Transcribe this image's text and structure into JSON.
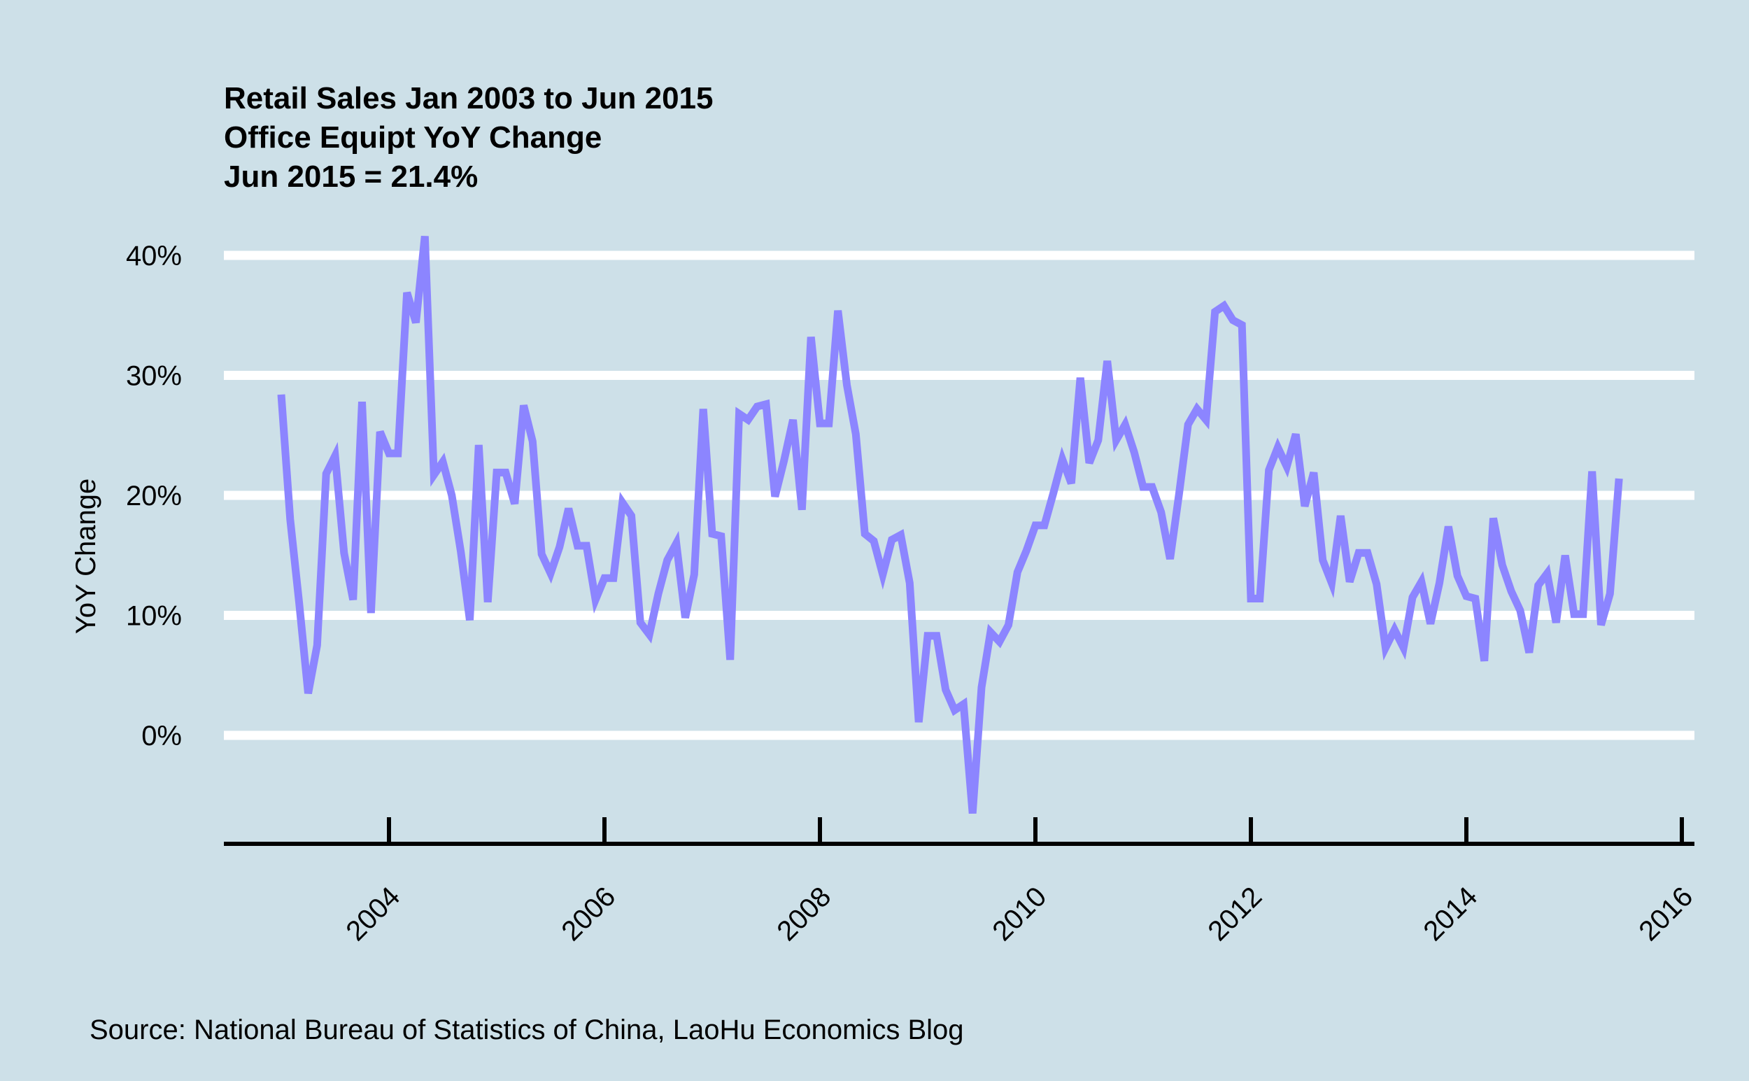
{
  "chart_data": {
    "type": "line",
    "title_lines": [
      "Retail Sales Jan 2003 to Jun 2015",
      "Office Equipt YoY Change",
      "Jun 2015 = 21.4%"
    ],
    "xlabel": "",
    "ylabel": "YoY Change",
    "yticks": [
      0,
      10,
      20,
      30,
      40
    ],
    "ytick_labels": [
      "0%",
      "10%",
      "20%",
      "30%",
      "40%"
    ],
    "xticks": [
      2004,
      2006,
      2008,
      2010,
      2012,
      2014,
      2016
    ],
    "xtick_labels": [
      "2004",
      "2006",
      "2008",
      "2010",
      "2012",
      "2014",
      "2016"
    ],
    "xlim": [
      2002.5,
      2016.1
    ],
    "ylim": [
      -9,
      44
    ],
    "grid": "horizontal",
    "colors": {
      "background": "#cde0e8",
      "line": "#8c85ff",
      "grid": "#ffffff",
      "axis": "#000000"
    },
    "series": [
      {
        "name": "",
        "x": [
          "2003-01",
          "2003-02",
          "2003-03",
          "2003-04",
          "2003-05",
          "2003-06",
          "2003-07",
          "2003-08",
          "2003-09",
          "2003-10",
          "2003-11",
          "2003-12",
          "2004-01",
          "2004-02",
          "2004-03",
          "2004-04",
          "2004-05",
          "2004-06",
          "2004-07",
          "2004-08",
          "2004-09",
          "2004-10",
          "2004-11",
          "2004-12",
          "2005-01",
          "2005-02",
          "2005-03",
          "2005-04",
          "2005-05",
          "2005-06",
          "2005-07",
          "2005-08",
          "2005-09",
          "2005-10",
          "2005-11",
          "2005-12",
          "2006-01",
          "2006-02",
          "2006-03",
          "2006-04",
          "2006-05",
          "2006-06",
          "2006-07",
          "2006-08",
          "2006-09",
          "2006-10",
          "2006-11",
          "2006-12",
          "2007-01",
          "2007-02",
          "2007-03",
          "2007-04",
          "2007-05",
          "2007-06",
          "2007-07",
          "2007-08",
          "2007-09",
          "2007-10",
          "2007-11",
          "2007-12",
          "2008-01",
          "2008-02",
          "2008-03",
          "2008-04",
          "2008-05",
          "2008-06",
          "2008-07",
          "2008-08",
          "2008-09",
          "2008-10",
          "2008-11",
          "2008-12",
          "2009-01",
          "2009-02",
          "2009-03",
          "2009-04",
          "2009-05",
          "2009-06",
          "2009-07",
          "2009-08",
          "2009-09",
          "2009-10",
          "2009-11",
          "2009-12",
          "2010-01",
          "2010-02",
          "2010-03",
          "2010-04",
          "2010-05",
          "2010-06",
          "2010-07",
          "2010-08",
          "2010-09",
          "2010-10",
          "2010-11",
          "2010-12",
          "2011-01",
          "2011-02",
          "2011-03",
          "2011-04",
          "2011-05",
          "2011-06",
          "2011-07",
          "2011-08",
          "2011-09",
          "2011-10",
          "2011-11",
          "2011-12",
          "2012-01",
          "2012-02",
          "2012-03",
          "2012-04",
          "2012-05",
          "2012-06",
          "2012-07",
          "2012-08",
          "2012-09",
          "2012-10",
          "2012-11",
          "2012-12",
          "2013-01",
          "2013-02",
          "2013-03",
          "2013-04",
          "2013-05",
          "2013-06",
          "2013-07",
          "2013-08",
          "2013-09",
          "2013-10",
          "2013-11",
          "2013-12",
          "2014-01",
          "2014-02",
          "2014-03",
          "2014-04",
          "2014-05",
          "2014-06",
          "2014-07",
          "2014-08",
          "2014-09",
          "2014-10",
          "2014-11",
          "2014-12",
          "2015-01",
          "2015-02",
          "2015-03",
          "2015-04",
          "2015-05",
          "2015-06"
        ],
        "values": [
          28.4,
          18,
          11,
          3.5,
          7.5,
          21.8,
          23.3,
          15.2,
          11.3,
          27.8,
          10.2,
          25.3,
          23.5,
          23.5,
          36.9,
          34.4,
          41.6,
          21.7,
          22.8,
          20,
          15.3,
          9.6,
          24.2,
          11.1,
          21.9,
          21.9,
          19.3,
          27.5,
          24.5,
          15.1,
          13.5,
          15.7,
          18.9,
          15.8,
          15.8,
          11.3,
          13.1,
          13.1,
          19.4,
          18.3,
          9.4,
          8.4,
          11.8,
          14.6,
          16,
          9.8,
          13.4,
          27.2,
          16.8,
          16.6,
          6.3,
          26.8,
          26.3,
          27.4,
          27.6,
          19.9,
          22.9,
          26.3,
          18.8,
          33.2,
          26,
          26,
          35.4,
          29.2,
          25.1,
          16.8,
          16.2,
          13.4,
          16.3,
          16.7,
          12.7,
          1.1,
          8.3,
          8.3,
          3.8,
          2.1,
          2.6,
          -6.5,
          4,
          8.6,
          7.8,
          9.2,
          13.6,
          15.4,
          17.5,
          17.5,
          20.2,
          23,
          21,
          29.8,
          22.7,
          24.6,
          31.2,
          24.6,
          25.9,
          23.6,
          20.7,
          20.7,
          18.6,
          14.7,
          20.1,
          25.9,
          27.2,
          26.3,
          35.3,
          35.8,
          34.6,
          34.2,
          11.4,
          11.4,
          22.1,
          24,
          22.4,
          25.1,
          19.1,
          21.9,
          14.6,
          12.7,
          18.3,
          12.8,
          15.2,
          15.2,
          12.6,
          7.3,
          8.8,
          7.3,
          11.5,
          12.8,
          9.3,
          12.7,
          17.4,
          13.3,
          11.6,
          11.4,
          6.2,
          18.1,
          14.2,
          12,
          10.4,
          6.9,
          12.5,
          13.5,
          9.4,
          15,
          10.1,
          10.1,
          22,
          9.2,
          11.8,
          21.4
        ]
      }
    ],
    "source": "Source: National Bureau of Statistics of China, LaoHu Economics Blog"
  }
}
